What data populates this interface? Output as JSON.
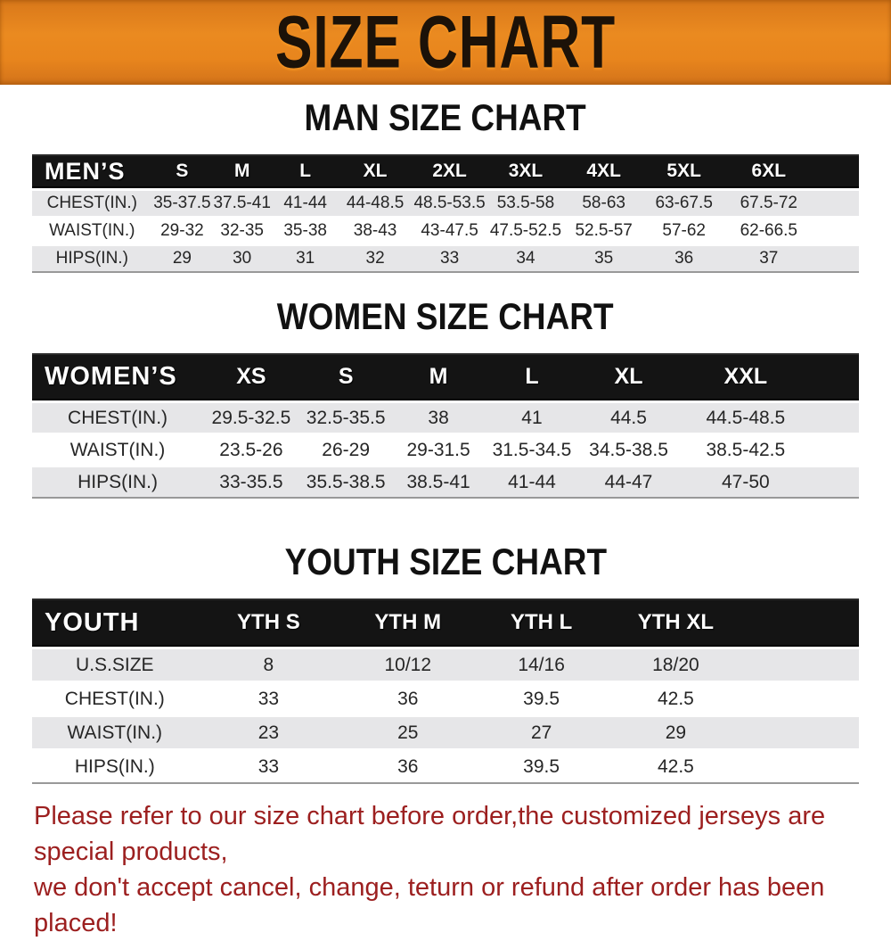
{
  "banner": {
    "title": "SIZE CHART",
    "bg_color": "#e8851d",
    "text_color": "#1c1208"
  },
  "sections": [
    {
      "heading": "MAN SIZE CHART",
      "corner_label": "MEN’S",
      "columns": [
        "S",
        "M",
        "L",
        "XL",
        "2XL",
        "3XL",
        "4XL",
        "5XL",
        "6XL"
      ],
      "rows": [
        {
          "label": "CHEST(IN.)",
          "values": [
            "35-37.5",
            "37.5-41",
            "41-44",
            "44-48.5",
            "48.5-53.5",
            "53.5-58",
            "58-63",
            "63-67.5",
            "67.5-72"
          ]
        },
        {
          "label": "WAIST(IN.)",
          "values": [
            "29-32",
            "32-35",
            "35-38",
            "38-43",
            "43-47.5",
            "47.5-52.5",
            "52.5-57",
            "57-62",
            "62-66.5"
          ]
        },
        {
          "label": "HIPS(IN.)",
          "values": [
            "29",
            "30",
            "31",
            "32",
            "33",
            "34",
            "35",
            "36",
            "37"
          ]
        }
      ]
    },
    {
      "heading": "WOMEN SIZE CHART",
      "corner_label": "WOMEN’S",
      "columns": [
        "XS",
        "S",
        "M",
        "L",
        "XL",
        "XXL"
      ],
      "rows": [
        {
          "label": "CHEST(IN.)",
          "values": [
            "29.5-32.5",
            "32.5-35.5",
            "38",
            "41",
            "44.5",
            "44.5-48.5"
          ]
        },
        {
          "label": "WAIST(IN.)",
          "values": [
            "23.5-26",
            "26-29",
            "29-31.5",
            "31.5-34.5",
            "34.5-38.5",
            "38.5-42.5"
          ]
        },
        {
          "label": "HIPS(IN.)",
          "values": [
            "33-35.5",
            "35.5-38.5",
            "38.5-41",
            "41-44",
            "44-47",
            "47-50"
          ]
        }
      ]
    },
    {
      "heading": "YOUTH SIZE CHART",
      "corner_label": "YOUTH",
      "columns": [
        "YTH S",
        "YTH M",
        "YTH L",
        "YTH XL"
      ],
      "rows": [
        {
          "label": "U.S.SIZE",
          "values": [
            "8",
            "10/12",
            "14/16",
            "18/20"
          ]
        },
        {
          "label": "CHEST(IN.)",
          "values": [
            "33",
            "36",
            "39.5",
            "42.5"
          ]
        },
        {
          "label": "WAIST(IN.)",
          "values": [
            "23",
            "25",
            "27",
            "29"
          ]
        },
        {
          "label": "HIPS(IN.)",
          "values": [
            "33",
            "36",
            "39.5",
            "42.5"
          ]
        }
      ]
    }
  ],
  "footer": {
    "line1": "Please refer to our size chart before order,the customized jerseys are special products,",
    "line2": "we don't accept cancel, change, teturn or refund after order has been placed!",
    "text_color": "#9c1f1f"
  }
}
